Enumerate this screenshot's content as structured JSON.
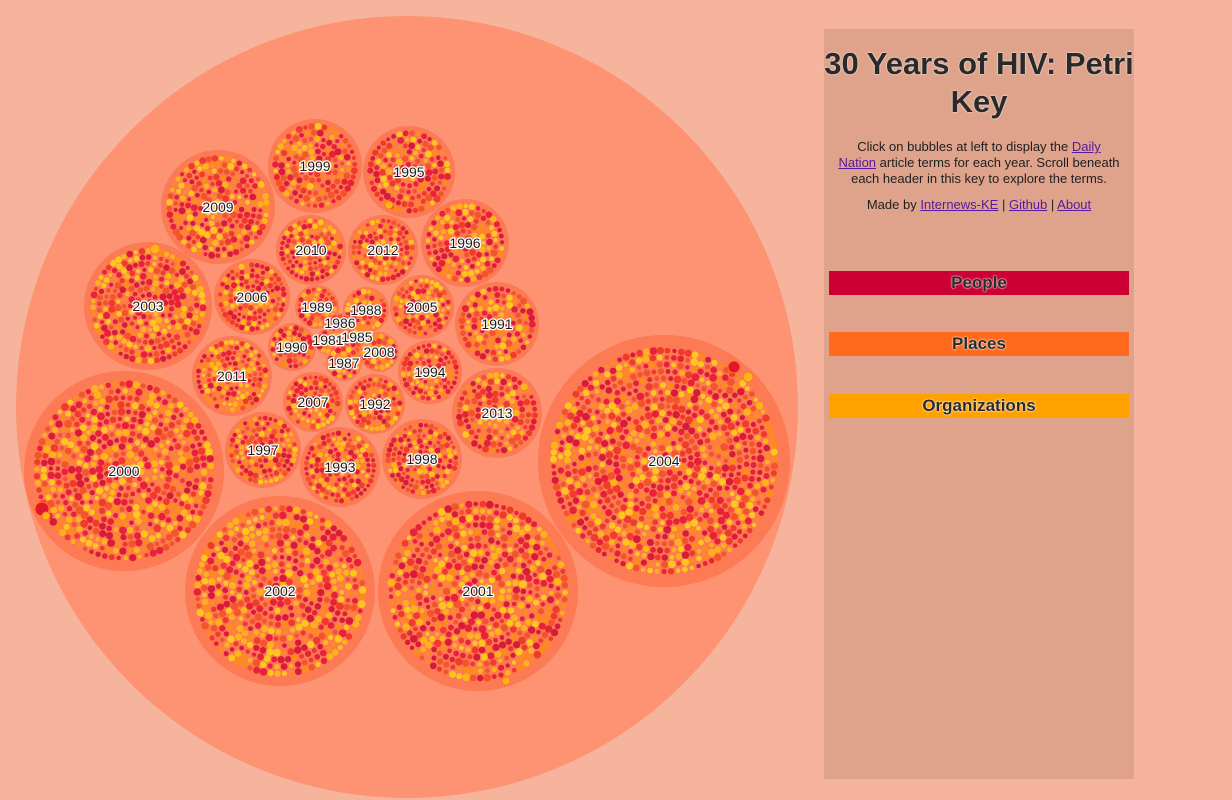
{
  "title": "30 Years of HIV: Petri Key",
  "intro": {
    "before": "Click on bubbles at left to display the ",
    "link": "Daily Nation",
    "after": " article terms for each year. Scroll beneath each header in this key to explore the terms."
  },
  "credits": {
    "prefix": "Made by ",
    "links": [
      "Internews-KE",
      "Github",
      "About"
    ],
    "separator": " | "
  },
  "key_headers": [
    "People",
    "Places",
    "Organizations"
  ],
  "colors": {
    "background": "#f7b49c",
    "outer_bubble": "#fd9373",
    "year_bubble": "#fc7a54",
    "panel": "#dfa38c",
    "people": "#cc0033",
    "places": "#ff6a1e",
    "organizations": "#ffa200"
  },
  "years": [
    "2000",
    "2001",
    "2002",
    "2003",
    "2004",
    "2009",
    "1999",
    "1995",
    "2010",
    "2012",
    "1996",
    "2006",
    "1989",
    "1988",
    "2005",
    "1991",
    "1986",
    "1985",
    "1981",
    "1990",
    "2008",
    "1987",
    "2011",
    "1994",
    "2007",
    "1992",
    "2013",
    "1997",
    "1993",
    "1998"
  ]
}
